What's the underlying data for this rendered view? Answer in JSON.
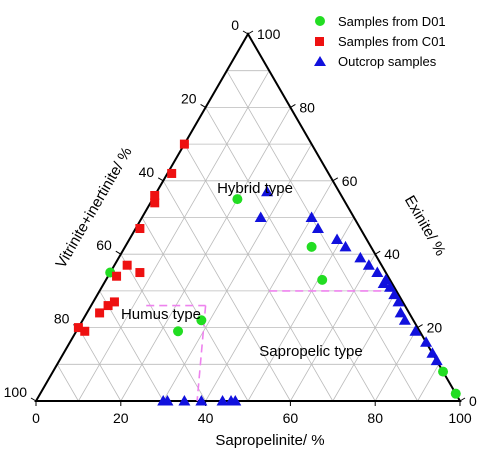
{
  "chart_data": {
    "type": "scatter",
    "subtype": "ternary",
    "axes": {
      "bottom": {
        "label": "Sapropelinite/ %",
        "ticks": [
          "0",
          "20",
          "40",
          "60",
          "80",
          "100"
        ],
        "range": [
          0,
          100
        ]
      },
      "left": {
        "label": "Vitrinite+inertinite/ %",
        "ticks": [
          "0",
          "20",
          "40",
          "60",
          "80",
          "100"
        ],
        "range": [
          0,
          100
        ]
      },
      "right": {
        "label": "Exinite/ %",
        "ticks": [
          "100",
          "80",
          "60",
          "40",
          "20",
          "0"
        ],
        "range": [
          0,
          100
        ]
      }
    },
    "grid": true,
    "grid_step": 10,
    "legend_position": "top-right",
    "regions": [
      {
        "label": "Hybrid type"
      },
      {
        "label": "Humus type"
      },
      {
        "label": "Sapropelic type"
      }
    ],
    "boundary_lines": [
      {
        "style": "dashed",
        "color": "#ee82ee",
        "points": [
          {
            "sap": 13,
            "vit": 61,
            "exi": 26
          },
          {
            "sap": 27,
            "vit": 47,
            "exi": 26
          }
        ]
      },
      {
        "style": "dashed",
        "color": "#ee82ee",
        "points": [
          {
            "sap": 27,
            "vit": 47,
            "exi": 26
          },
          {
            "sap": 38,
            "vit": 62,
            "exi": 0
          }
        ]
      },
      {
        "style": "dashed",
        "color": "#ee82ee",
        "points": [
          {
            "sap": 40,
            "vit": 30,
            "exi": 30
          },
          {
            "sap": 70,
            "vit": 0,
            "exi": 30
          }
        ]
      }
    ],
    "series": [
      {
        "name": "Samples from D01",
        "marker": "circle",
        "color": "#22dd22",
        "points": [
          {
            "sap": 0,
            "vit": 65,
            "exi": 35
          },
          {
            "sap": 24,
            "vit": 57,
            "exi": 19
          },
          {
            "sap": 28,
            "vit": 50,
            "exi": 22
          },
          {
            "sap": 20,
            "vit": 25,
            "exi": 55
          },
          {
            "sap": 44,
            "vit": 14,
            "exi": 42
          },
          {
            "sap": 51,
            "vit": 16,
            "exi": 33
          },
          {
            "sap": 92,
            "vit": 0,
            "exi": 8
          },
          {
            "sap": 98,
            "vit": 0,
            "exi": 2
          }
        ]
      },
      {
        "name": "Samples from C01",
        "marker": "square",
        "color": "#ee1111",
        "points": [
          {
            "sap": 0,
            "vit": 80,
            "exi": 20
          },
          {
            "sap": 2,
            "vit": 79,
            "exi": 19
          },
          {
            "sap": 3,
            "vit": 73,
            "exi": 24
          },
          {
            "sap": 4,
            "vit": 70,
            "exi": 26
          },
          {
            "sap": 5,
            "vit": 68,
            "exi": 27
          },
          {
            "sap": 2,
            "vit": 64,
            "exi": 34
          },
          {
            "sap": 3,
            "vit": 60,
            "exi": 37
          },
          {
            "sap": 7,
            "vit": 58,
            "exi": 35
          },
          {
            "sap": 1,
            "vit": 52,
            "exi": 47
          },
          {
            "sap": 1,
            "vit": 45,
            "exi": 54
          },
          {
            "sap": 0,
            "vit": 44,
            "exi": 56
          },
          {
            "sap": 1,
            "vit": 37,
            "exi": 62
          },
          {
            "sap": 0,
            "vit": 30,
            "exi": 70
          }
        ]
      },
      {
        "name": "Outcrop samples",
        "marker": "triangle",
        "color": "#1111dd",
        "points": [
          {
            "sap": 30,
            "vit": 70,
            "exi": 0
          },
          {
            "sap": 31,
            "vit": 69,
            "exi": 0
          },
          {
            "sap": 35,
            "vit": 65,
            "exi": 0
          },
          {
            "sap": 39,
            "vit": 61,
            "exi": 0
          },
          {
            "sap": 44,
            "vit": 56,
            "exi": 0
          },
          {
            "sap": 46,
            "vit": 54,
            "exi": 0
          },
          {
            "sap": 47,
            "vit": 53,
            "exi": 0
          },
          {
            "sap": 28,
            "vit": 22,
            "exi": 50
          },
          {
            "sap": 26,
            "vit": 17,
            "exi": 57
          },
          {
            "sap": 40,
            "vit": 10,
            "exi": 50
          },
          {
            "sap": 43,
            "vit": 10,
            "exi": 47
          },
          {
            "sap": 49,
            "vit": 7,
            "exi": 44
          },
          {
            "sap": 52,
            "vit": 6,
            "exi": 42
          },
          {
            "sap": 57,
            "vit": 4,
            "exi": 39
          },
          {
            "sap": 60,
            "vit": 3,
            "exi": 37
          },
          {
            "sap": 63,
            "vit": 2,
            "exi": 35
          },
          {
            "sap": 66,
            "vit": 2,
            "exi": 32
          },
          {
            "sap": 66,
            "vit": 1,
            "exi": 33
          },
          {
            "sap": 68,
            "vit": 1,
            "exi": 31
          },
          {
            "sap": 70,
            "vit": 1,
            "exi": 29
          },
          {
            "sap": 72,
            "vit": 1,
            "exi": 27
          },
          {
            "sap": 74,
            "vit": 2,
            "exi": 24
          },
          {
            "sap": 76,
            "vit": 2,
            "exi": 22
          },
          {
            "sap": 80,
            "vit": 1,
            "exi": 19
          },
          {
            "sap": 84,
            "vit": 0,
            "exi": 16
          },
          {
            "sap": 87,
            "vit": 0,
            "exi": 13
          },
          {
            "sap": 89,
            "vit": 0,
            "exi": 11
          }
        ]
      }
    ]
  }
}
